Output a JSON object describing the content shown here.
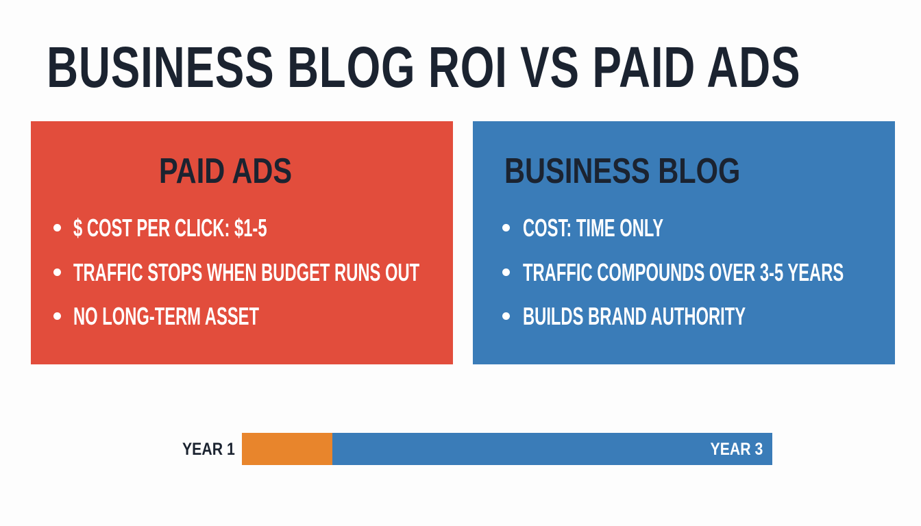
{
  "title": "BUSINESS BLOG ROI VS PAID ADS",
  "paid_ads": {
    "heading": "PAID ADS",
    "color": "#e24d3c",
    "bullets": [
      "$ COST PER CLICK: $1-5",
      "TRAFFIC STOPS WHEN BUDGET RUNS OUT",
      "NO LONG-TERM ASSET"
    ]
  },
  "business_blog": {
    "heading": "BUSINESS BLOG",
    "color": "#3a7cb8",
    "bullets": [
      "COST: TIME ONLY",
      "TRAFFIC COMPOUNDS OVER 3-5 YEARS",
      "BUILDS BRAND AUTHORITY"
    ]
  },
  "timeline": {
    "start_label": "YEAR 1",
    "end_label": "YEAR 3",
    "paid_fraction": 0.17,
    "paid_color": "#e8852c",
    "blog_color": "#3a7cb8"
  }
}
